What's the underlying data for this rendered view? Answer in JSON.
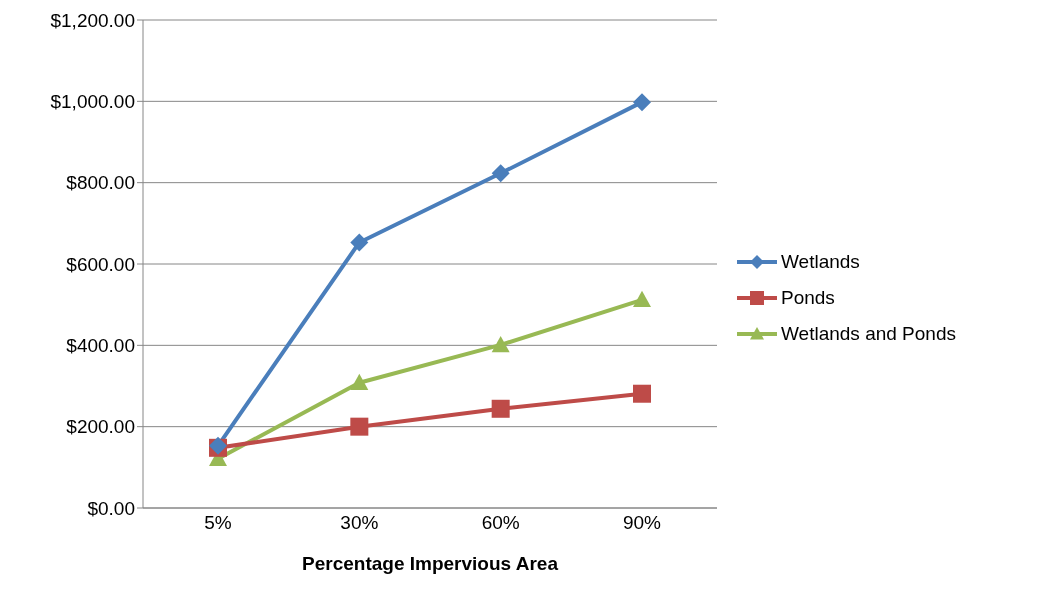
{
  "chart_data": {
    "type": "line",
    "xlabel": "Percentage Impervious Area",
    "categories": [
      "5%",
      "30%",
      "60%",
      "90%"
    ],
    "series": [
      {
        "name": "Wetlands",
        "color": "#4a7ebb",
        "marker": "diamond",
        "values": [
          153,
          653,
          823,
          998
        ]
      },
      {
        "name": "Ponds",
        "color": "#be4b48",
        "marker": "square",
        "values": [
          148,
          200,
          244,
          281
        ]
      },
      {
        "name": "Wetlands and Ponds",
        "color": "#98b954",
        "marker": "triangle",
        "values": [
          121,
          308,
          401,
          512
        ]
      }
    ],
    "ylim": [
      0,
      1200
    ],
    "yticks": [
      {
        "value": 0,
        "label": "$0.00"
      },
      {
        "value": 200,
        "label": "$200.00"
      },
      {
        "value": 400,
        "label": "$400.00"
      },
      {
        "value": 600,
        "label": "$600.00"
      },
      {
        "value": 800,
        "label": "$800.00"
      },
      {
        "value": 1000,
        "label": "$1,000.00"
      },
      {
        "value": 1200,
        "label": "$1,200.00"
      }
    ],
    "grid": "y",
    "legend": "right"
  }
}
